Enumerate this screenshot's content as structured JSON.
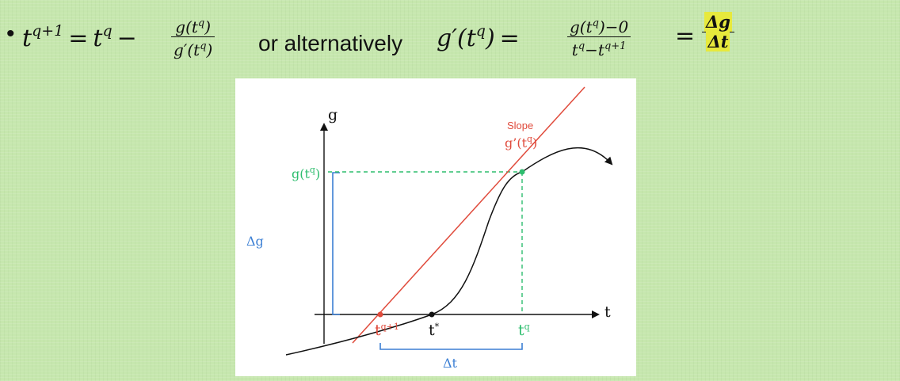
{
  "formula": {
    "bullet": "•",
    "lhs_var": "t",
    "lhs_exp": "q+1",
    "equals": "=",
    "t_var": "t",
    "t_exp": "q",
    "minus": "−",
    "frac1_num": "g(t",
    "frac1_num_exp": "q",
    "frac1_num_close": ")",
    "frac1_den": "g′(t",
    "frac1_den_exp": "q",
    "frac1_den_close": ")",
    "connector": "or alternatively",
    "rhs_lhs": "g′(t",
    "rhs_lhs_exp": "q",
    "rhs_lhs_close": ")",
    "equals2": "=",
    "frac2_num": "g(t",
    "frac2_num_exp": "q",
    "frac2_num_close": ")−0",
    "frac2_den_a": "t",
    "frac2_den_a_exp": "q",
    "frac2_den_minus": "−t",
    "frac2_den_b_exp": "q+1",
    "equals3": "=",
    "frac3_num": "Δg",
    "frac3_den": "Δt",
    "highlight_color": "#e7e93c"
  },
  "diagram": {
    "y_axis_label": "g",
    "x_axis_label": "t",
    "slope_label": "Slope",
    "slope_value": "g’(t",
    "slope_value_exp": "q",
    "slope_value_close": ")",
    "g_tq_label": "g(t",
    "g_tq_label_exp": "q",
    "g_tq_label_close": ")",
    "delta_g_label": "Δg",
    "delta_t_label": "Δt",
    "t_next_label": "t",
    "t_next_exp": "q+1",
    "t_star_label": "t",
    "t_star_exp": "*",
    "t_q_label": "t",
    "t_q_exp": "q",
    "colors": {
      "tangent": "#e04b3c",
      "green": "#2ebd6e",
      "blue": "#3b7fd4",
      "curve": "#111111"
    }
  }
}
